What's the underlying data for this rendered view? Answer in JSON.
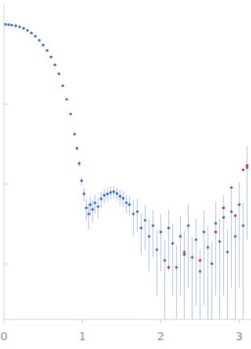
{
  "chart_data": {
    "type": "scatter",
    "log": "y",
    "tick_labels": "x",
    "grid": false,
    "xlim": [
      0,
      3.15
    ],
    "ylim": [
      0.0002,
      1.8
    ],
    "xticks": [
      0,
      1,
      2,
      3
    ],
    "yticks": [
      0.001,
      0.01,
      0.1
    ],
    "series": [
      {
        "color": "#3d68c0",
        "marker": "circle",
        "x": [
          0.02,
          0.06,
          0.1,
          0.15,
          0.2,
          0.25,
          0.3,
          0.35,
          0.4,
          0.45,
          0.5,
          0.55,
          0.6,
          0.65,
          0.7,
          0.75,
          0.8,
          0.85,
          0.9,
          0.93,
          0.96,
          0.99,
          1.02,
          1.05,
          1.08,
          1.1,
          1.13,
          1.16,
          1.2,
          1.24,
          1.28,
          1.32,
          1.36,
          1.4,
          1.44,
          1.48,
          1.52,
          1.56,
          1.6,
          1.65,
          1.7,
          1.75,
          1.8,
          1.85,
          1.9,
          1.95,
          2.0,
          2.05,
          2.1,
          2.15,
          2.2,
          2.25,
          2.3,
          2.35,
          2.4,
          2.45,
          2.5,
          2.55,
          2.6,
          2.65,
          2.7,
          2.75,
          2.8,
          2.85,
          2.9,
          2.95,
          3.0,
          3.05,
          3.1
        ],
        "values": [
          1.0,
          0.99,
          0.98,
          0.96,
          0.93,
          0.89,
          0.84,
          0.78,
          0.71,
          0.63,
          0.55,
          0.47,
          0.39,
          0.31,
          0.24,
          0.17,
          0.115,
          0.075,
          0.042,
          0.028,
          0.018,
          0.011,
          0.0075,
          0.005,
          0.0042,
          0.0055,
          0.0048,
          0.0058,
          0.0052,
          0.0065,
          0.0072,
          0.0075,
          0.0078,
          0.008,
          0.0076,
          0.007,
          0.0066,
          0.0058,
          0.0055,
          0.0042,
          0.0045,
          0.0028,
          0.0035,
          0.0022,
          0.003,
          0.0015,
          0.0025,
          0.0011,
          0.0028,
          0.0018,
          0.0009,
          0.0022,
          0.0014,
          0.003,
          0.0012,
          0.002,
          0.0008,
          0.0025,
          0.0016,
          0.001,
          0.0032,
          0.0019,
          0.0038,
          0.0014,
          0.0045,
          0.0022,
          0.0055,
          0.003,
          0.016
        ],
        "errors": [
          0.005,
          0.005,
          0.005,
          0.005,
          0.005,
          0.005,
          0.005,
          0.005,
          0.005,
          0.005,
          0.004,
          0.004,
          0.003,
          0.003,
          0.003,
          0.002,
          0.002,
          0.002,
          0.002,
          0.002,
          0.0015,
          0.0015,
          0.0015,
          0.0015,
          0.0015,
          0.0015,
          0.0015,
          0.0015,
          0.0015,
          0.0015,
          0.0015,
          0.0015,
          0.0015,
          0.0015,
          0.0015,
          0.0015,
          0.0015,
          0.0015,
          0.0015,
          0.002,
          0.002,
          0.0015,
          0.002,
          0.0014,
          0.0018,
          0.0011,
          0.0017,
          0.0009,
          0.002,
          0.0014,
          0.0008,
          0.0018,
          0.0012,
          0.0025,
          0.001,
          0.0017,
          0.0007,
          0.0022,
          0.0014,
          0.0009,
          0.0028,
          0.0017,
          0.0034,
          0.0013,
          0.004,
          0.002,
          0.005,
          0.0028,
          0.014
        ]
      },
      {
        "color": "#e0202a",
        "marker": "circle",
        "x": [
          2.1,
          2.3,
          2.5,
          2.7,
          2.8,
          2.9,
          2.95,
          3.05,
          3.1
        ],
        "values": [
          0.0009,
          0.0013,
          0.0011,
          0.0025,
          0.005,
          0.009,
          0.004,
          0.015,
          0.017
        ]
      }
    ]
  }
}
